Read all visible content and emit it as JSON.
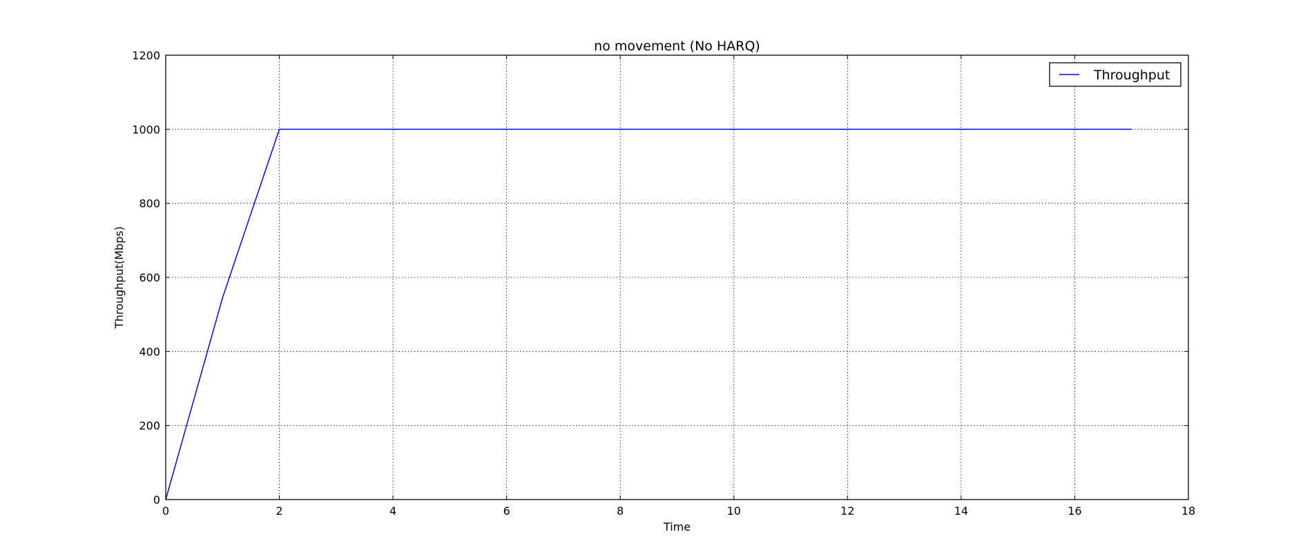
{
  "chart_data": {
    "type": "line",
    "title": "no movement (No HARQ)",
    "xlabel": "Time",
    "ylabel": "Throughput(Mbps)",
    "xlim": [
      0,
      18
    ],
    "ylim": [
      0,
      1200
    ],
    "xticks": [
      0,
      2,
      4,
      6,
      8,
      10,
      12,
      14,
      16,
      18
    ],
    "yticks": [
      0,
      200,
      400,
      600,
      800,
      1000,
      1200
    ],
    "grid": true,
    "legend_position": "top-right",
    "series": [
      {
        "name": "Throughput",
        "color": "#0000ff",
        "x": [
          0,
          1,
          2,
          3,
          4,
          5,
          6,
          7,
          8,
          9,
          10,
          11,
          12,
          13,
          14,
          15,
          16,
          17
        ],
        "y": [
          0,
          545,
          1000,
          1000,
          1000,
          1000,
          1000,
          1000,
          1000,
          1000,
          1000,
          1000,
          1000,
          1000,
          1000,
          1000,
          1000,
          1000
        ]
      }
    ]
  }
}
